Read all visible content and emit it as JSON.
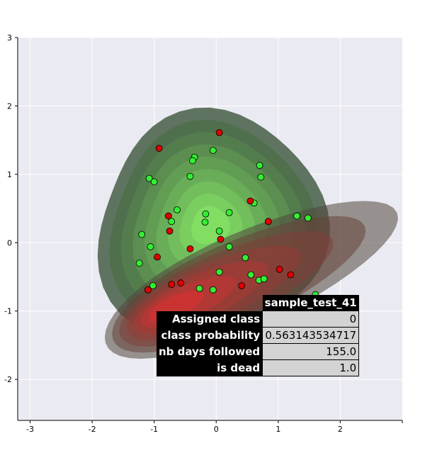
{
  "chart_data": {
    "type": "scatter",
    "title": "",
    "xlabel": "",
    "ylabel": "",
    "xlim": [
      -3.2,
      3.0
    ],
    "ylim": [
      -2.6,
      3.0
    ],
    "x_ticks": [
      -3,
      -2,
      -1,
      0,
      1,
      2
    ],
    "y_ticks": [
      -2,
      -1,
      0,
      1,
      2,
      3
    ],
    "grid": true,
    "background_color": "#eaeaf2",
    "density_contours": [
      {
        "name": "",
        "color": "#66cc55",
        "center": [
          -0.1,
          0.25
        ],
        "levels": 9
      },
      {
        "name": "",
        "color": "#b03030",
        "center": [
          -0.85,
          -1.0
        ],
        "levels": 7
      }
    ],
    "series": [
      {
        "name": "",
        "color": "#33ee33",
        "points": [
          [
            -0.35,
            1.25
          ],
          [
            -0.38,
            1.2
          ],
          [
            -0.05,
            1.35
          ],
          [
            0.7,
            1.13
          ],
          [
            0.72,
            0.96
          ],
          [
            -1.08,
            0.94
          ],
          [
            -1.0,
            0.89
          ],
          [
            -0.42,
            0.97
          ],
          [
            0.61,
            0.58
          ],
          [
            1.3,
            0.39
          ],
          [
            1.48,
            0.36
          ],
          [
            -0.63,
            0.48
          ],
          [
            -0.72,
            0.31
          ],
          [
            -0.17,
            0.42
          ],
          [
            0.21,
            0.44
          ],
          [
            -0.18,
            0.3
          ],
          [
            0.05,
            0.17
          ],
          [
            -1.2,
            0.12
          ],
          [
            -1.06,
            -0.06
          ],
          [
            0.21,
            -0.06
          ],
          [
            0.47,
            -0.22
          ],
          [
            -1.24,
            -0.3
          ],
          [
            0.05,
            -0.43
          ],
          [
            0.56,
            -0.47
          ],
          [
            0.69,
            -0.55
          ],
          [
            0.77,
            -0.53
          ],
          [
            -1.02,
            -0.63
          ],
          [
            -0.27,
            -0.67
          ],
          [
            -0.05,
            -0.69
          ],
          [
            1.6,
            -0.76
          ]
        ]
      },
      {
        "name": "",
        "color": "#dd0000",
        "points": [
          [
            0.05,
            1.61
          ],
          [
            -0.92,
            1.38
          ],
          [
            0.55,
            0.61
          ],
          [
            -0.77,
            0.39
          ],
          [
            0.84,
            0.31
          ],
          [
            -0.75,
            0.17
          ],
          [
            0.07,
            0.05
          ],
          [
            -0.42,
            -0.09
          ],
          [
            -0.95,
            -0.21
          ],
          [
            1.02,
            -0.39
          ],
          [
            1.2,
            -0.47
          ],
          [
            -0.57,
            -0.59
          ],
          [
            -0.72,
            -0.61
          ],
          [
            0.41,
            -0.63
          ],
          [
            -1.1,
            -0.69
          ]
        ]
      }
    ]
  },
  "info_table": {
    "title": "sample_test_41",
    "rows": [
      {
        "label": "Assigned class",
        "value": "0"
      },
      {
        "label": "class probability",
        "value": "0.563143534717"
      },
      {
        "label": "nb days followed",
        "value": "155.0"
      },
      {
        "label": "is dead",
        "value": "1.0"
      }
    ]
  }
}
